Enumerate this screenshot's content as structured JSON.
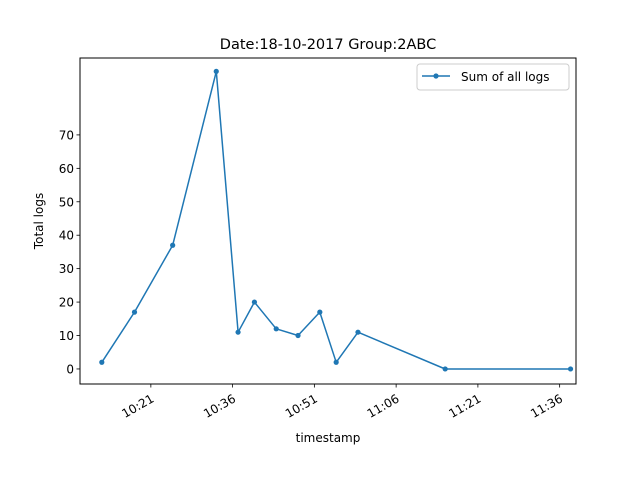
{
  "chart_data": {
    "type": "line",
    "title": "Date:18-10-2017  Group:2ABC",
    "xlabel": "timestamp",
    "ylabel": "Total logs",
    "xlim": [
      "10:08",
      "11:39"
    ],
    "ylim": [
      -4.5,
      93
    ],
    "grid": false,
    "legend_position": "top-right",
    "x_ticks": [
      "10:21",
      "10:36",
      "10:51",
      "11:06",
      "11:21",
      "11:36"
    ],
    "y_ticks": [
      0,
      10,
      20,
      30,
      40,
      50,
      60,
      70
    ],
    "series": [
      {
        "name": "Sum of all logs",
        "color": "#1f77b4",
        "marker": "point",
        "x": [
          "10:12",
          "10:18",
          "10:25",
          "10:33",
          "10:37",
          "10:40",
          "10:44",
          "10:48",
          "10:52",
          "10:55",
          "10:59",
          "11:15",
          "11:38"
        ],
        "y": [
          2,
          17,
          37,
          89,
          11,
          20,
          12,
          10,
          17,
          2,
          11,
          0,
          0
        ]
      }
    ]
  }
}
